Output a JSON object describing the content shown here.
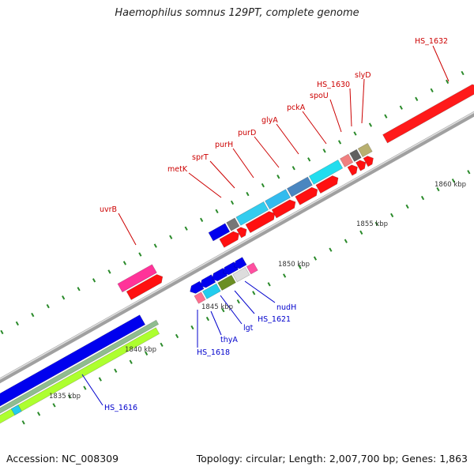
{
  "title": "Haemophilus somnus 129PT, complete genome",
  "footer": {
    "accession": "Accession: NC_008309",
    "summary": "Topology: circular; Length: 2,007,700 bp; Genes: 1,863"
  },
  "scale_labels": [
    "1835 kbp",
    "1840 kbp",
    "1845 kbp",
    "1850 kbp",
    "1855 kbp",
    "1860 kbp"
  ],
  "gene_labels_red": [
    "HS_1632",
    "slyD",
    "HS_1630",
    "spoU",
    "pckA",
    "glyA",
    "purD",
    "purH",
    "sprT",
    "metK",
    "uvrB"
  ],
  "gene_labels_blue": [
    "nudH",
    "HS_1621",
    "lgt",
    "thyA",
    "HS_1618",
    "HS_1616"
  ],
  "colors": {
    "forward_gene": "#ff0000",
    "reverse_gene": "#0000ee",
    "forward_label": "#cc0000",
    "reverse_label": "#0000cc",
    "backbone": "#808080",
    "ticks": "#2a8a2a"
  }
}
